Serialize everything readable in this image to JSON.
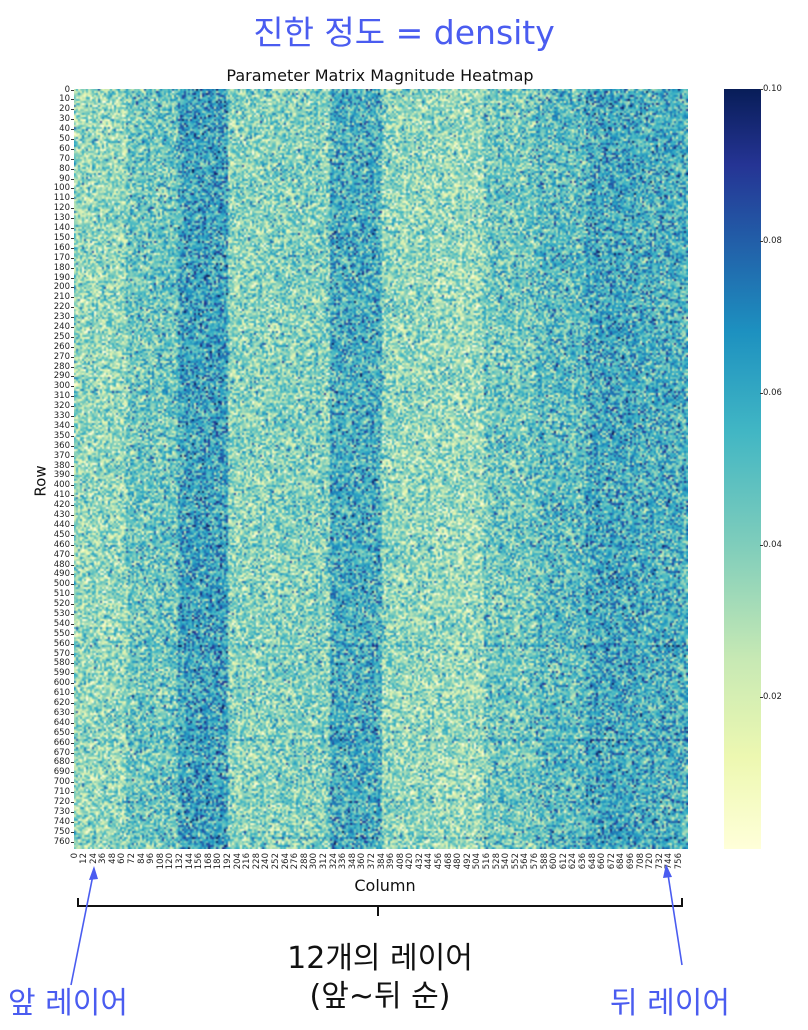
{
  "annotations": {
    "top_note": "진한 정도 = density",
    "front_layer": "앞 레이어",
    "back_layer": "뒤 레이어",
    "layers_line1": "12개의 레이어",
    "layers_line2": "(앞~뒤 순)"
  },
  "chart_data": {
    "type": "heatmap",
    "title": "Parameter Matrix Magnitude Heatmap",
    "xlabel": "Column",
    "ylabel": "Row",
    "rows": 768,
    "cols": 768,
    "y_tick_labels": [
      0,
      10,
      20,
      30,
      40,
      50,
      60,
      70,
      80,
      90,
      100,
      110,
      120,
      130,
      140,
      150,
      160,
      170,
      180,
      190,
      200,
      210,
      220,
      230,
      240,
      250,
      260,
      270,
      280,
      290,
      300,
      310,
      320,
      330,
      340,
      350,
      360,
      370,
      380,
      390,
      400,
      410,
      420,
      430,
      440,
      450,
      460,
      470,
      480,
      490,
      500,
      510,
      520,
      530,
      540,
      550,
      560,
      570,
      580,
      590,
      600,
      610,
      620,
      630,
      640,
      650,
      660,
      670,
      680,
      690,
      700,
      710,
      720,
      730,
      740,
      750,
      760
    ],
    "x_tick_labels": [
      0,
      12,
      24,
      36,
      48,
      60,
      72,
      84,
      96,
      108,
      120,
      132,
      144,
      156,
      168,
      180,
      192,
      204,
      216,
      228,
      240,
      252,
      264,
      276,
      288,
      300,
      312,
      324,
      336,
      348,
      360,
      372,
      384,
      396,
      408,
      420,
      432,
      444,
      456,
      468,
      480,
      492,
      504,
      516,
      528,
      540,
      552,
      564,
      576,
      588,
      600,
      612,
      624,
      636,
      648,
      660,
      672,
      684,
      696,
      708,
      720,
      732,
      744,
      756
    ],
    "colorbar": {
      "colormap": "YlGnBu",
      "range": [
        0,
        0.1
      ],
      "tick_labels": [
        "0.10",
        "0.08",
        "0.06",
        "0.04",
        "0.02"
      ],
      "tick_values": [
        0.1,
        0.08,
        0.06,
        0.04,
        0.02
      ]
    },
    "column_bands": [
      {
        "start": 0,
        "end": 64,
        "mean": 0.035
      },
      {
        "start": 64,
        "end": 128,
        "mean": 0.045
      },
      {
        "start": 128,
        "end": 192,
        "mean": 0.06
      },
      {
        "start": 192,
        "end": 256,
        "mean": 0.038
      },
      {
        "start": 256,
        "end": 320,
        "mean": 0.04
      },
      {
        "start": 320,
        "end": 384,
        "mean": 0.056
      },
      {
        "start": 384,
        "end": 448,
        "mean": 0.036
      },
      {
        "start": 448,
        "end": 512,
        "mean": 0.034
      },
      {
        "start": 512,
        "end": 576,
        "mean": 0.044
      },
      {
        "start": 576,
        "end": 640,
        "mean": 0.05
      },
      {
        "start": 640,
        "end": 704,
        "mean": 0.058
      },
      {
        "start": 704,
        "end": 768,
        "mean": 0.055
      }
    ]
  }
}
